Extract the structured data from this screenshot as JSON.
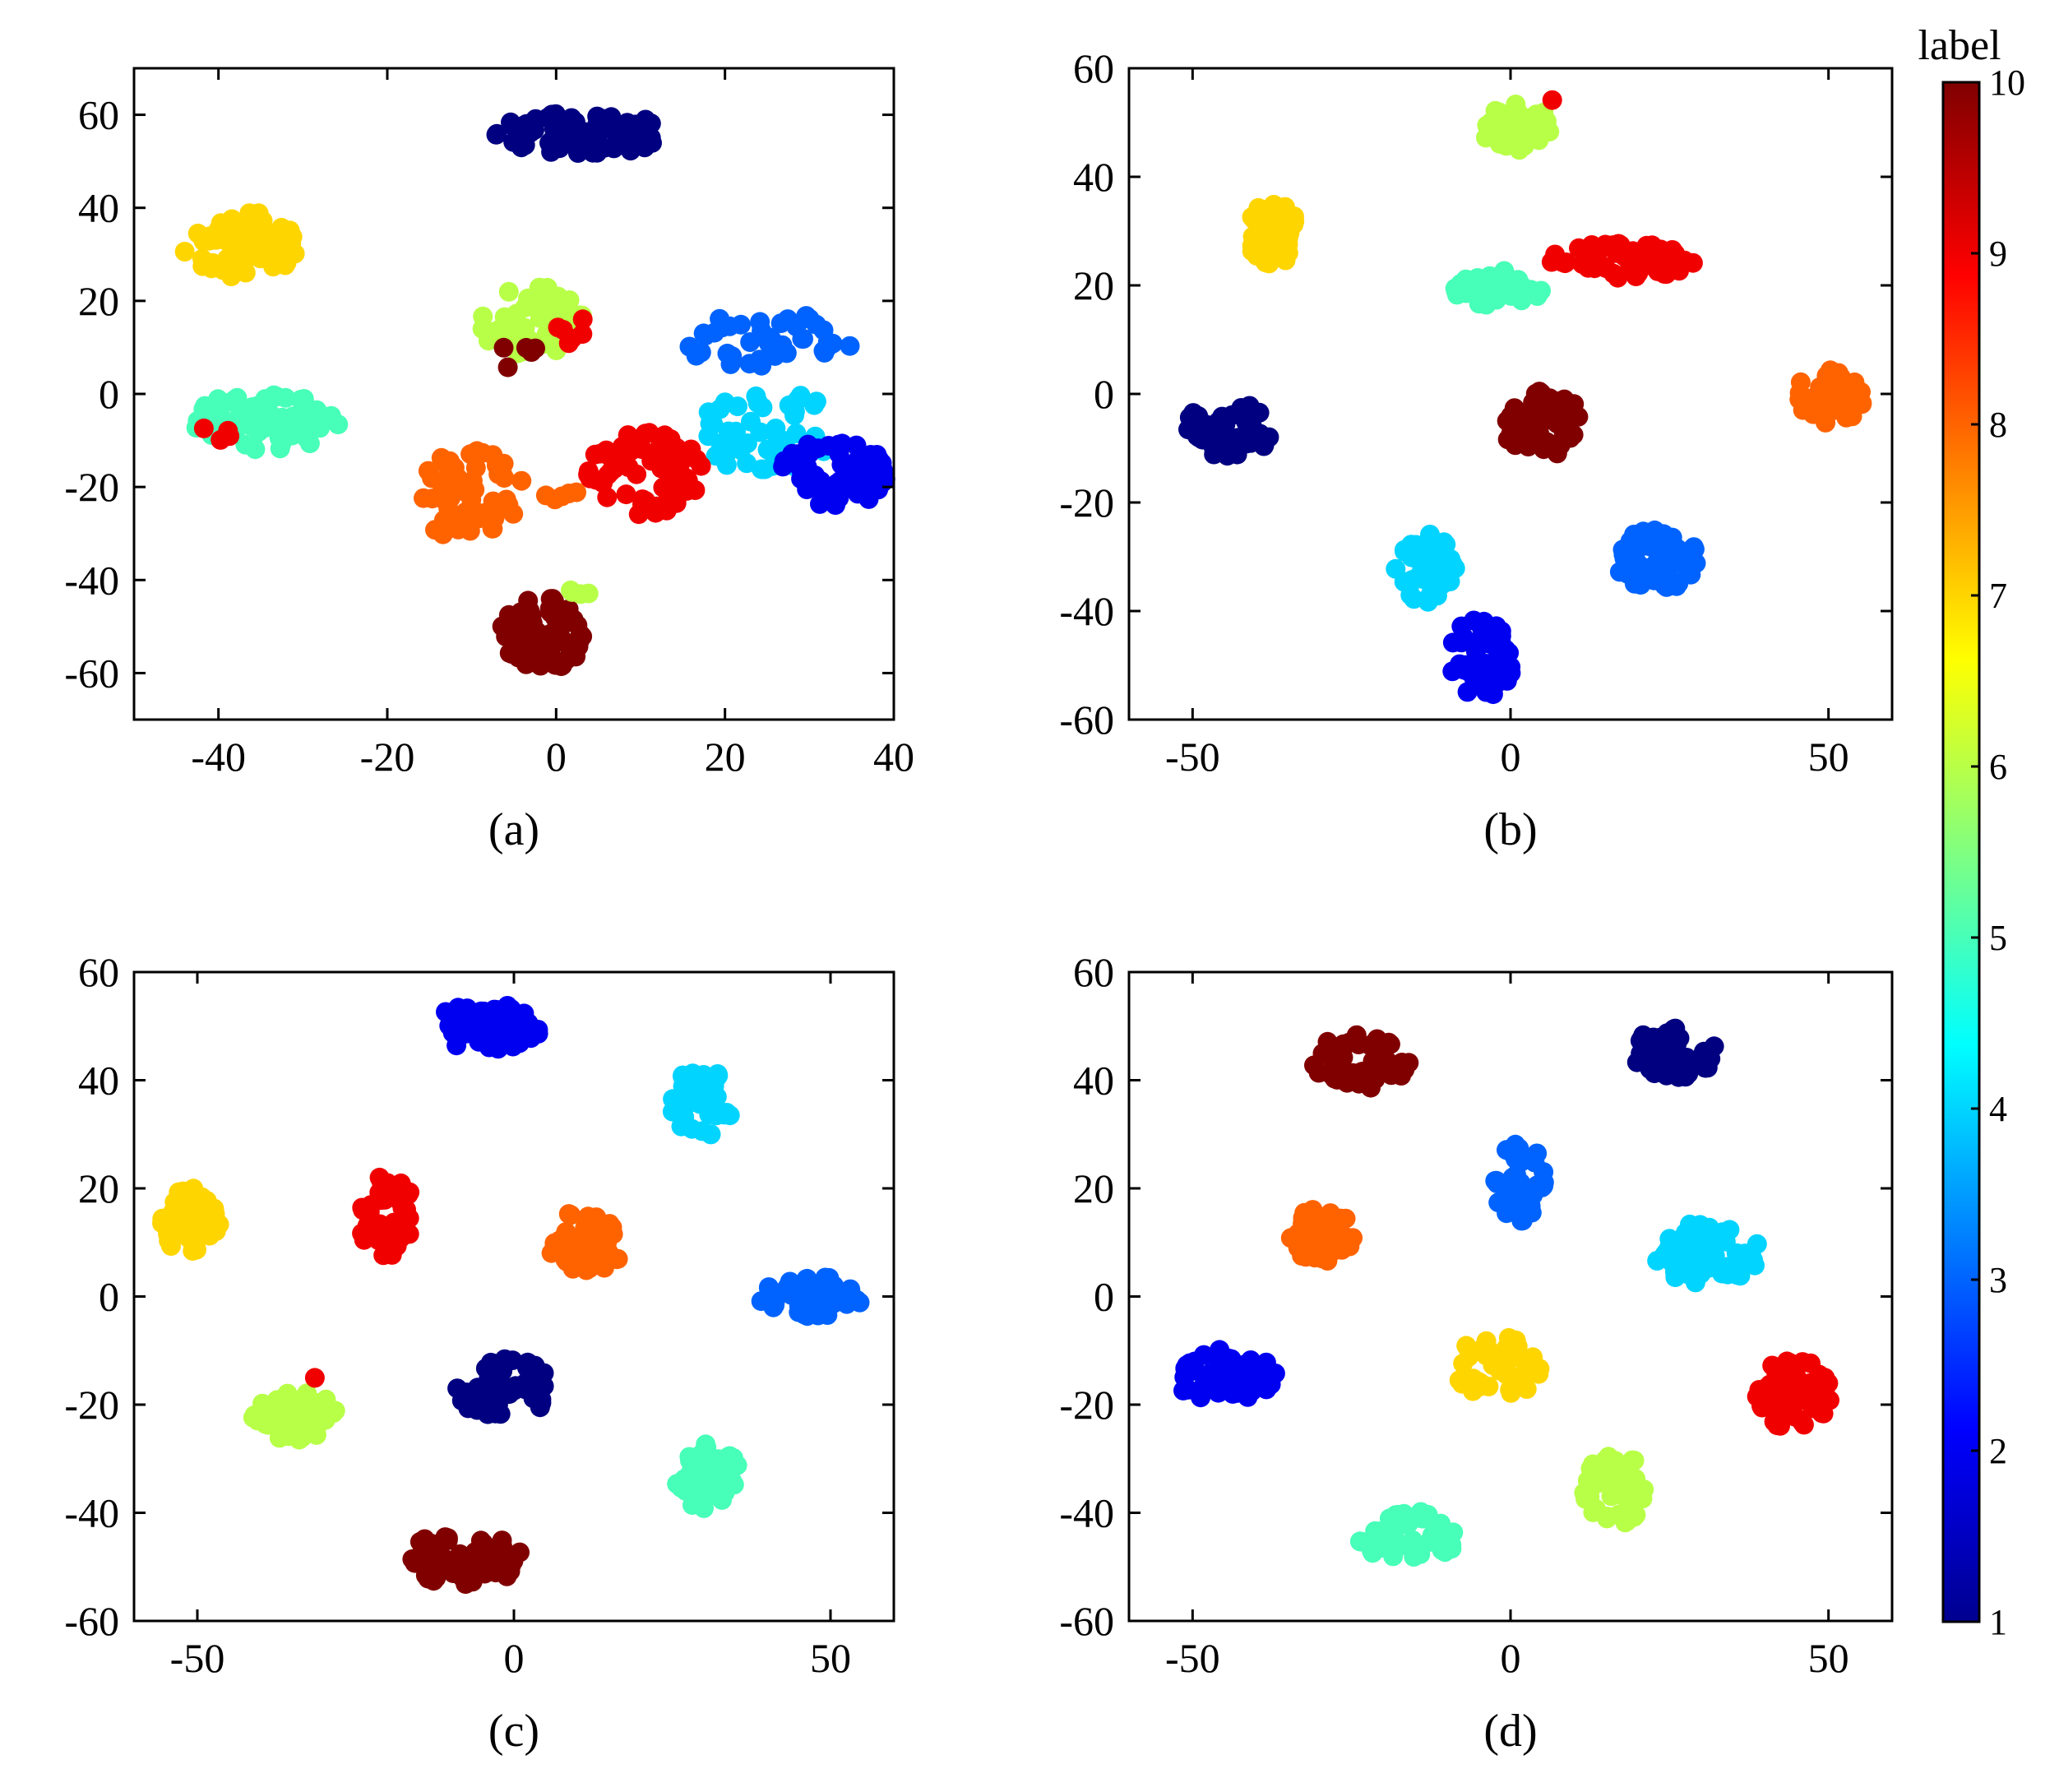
{
  "chart_data": [
    {
      "type": "scatter",
      "caption": "(a)",
      "xlim": [
        -50,
        40
      ],
      "ylim": [
        -70,
        70
      ],
      "xticks": [
        -40,
        -20,
        0,
        20,
        40
      ],
      "yticks": [
        -60,
        -40,
        -20,
        0,
        20,
        40,
        60
      ],
      "clusters": [
        {
          "label": 1,
          "x": [
            -8,
            14
          ],
          "y": [
            51,
            61
          ],
          "n": 70
        },
        {
          "label": 7,
          "x": [
            -45,
            -30
          ],
          "y": [
            24,
            40
          ],
          "n": 70
        },
        {
          "label": 6,
          "x": [
            -10,
            4
          ],
          "y": [
            7,
            24
          ],
          "n": 55
        },
        {
          "label": 9,
          "x": [
            0,
            5
          ],
          "y": [
            10,
            18
          ],
          "n": 6
        },
        {
          "label": 10,
          "x": [
            -9,
            0
          ],
          "y": [
            5,
            11
          ],
          "n": 5
        },
        {
          "label": 5,
          "x": [
            -44,
            -25
          ],
          "y": [
            -13,
            1
          ],
          "n": 70
        },
        {
          "label": 9,
          "x": [
            -42,
            -37
          ],
          "y": [
            -11,
            -5
          ],
          "n": 4
        },
        {
          "label": 3,
          "x": [
            14,
            36
          ],
          "y": [
            5,
            18
          ],
          "n": 45
        },
        {
          "label": 4,
          "x": [
            16,
            34
          ],
          "y": [
            -18,
            2
          ],
          "n": 55
        },
        {
          "label": 2,
          "x": [
            26,
            40
          ],
          "y": [
            -25,
            -9
          ],
          "n": 55
        },
        {
          "label": 9,
          "x": [
            3,
            18
          ],
          "y": [
            -27,
            -7
          ],
          "n": 65
        },
        {
          "label": 8,
          "x": [
            -17,
            -4
          ],
          "y": [
            -33,
            -10
          ],
          "n": 60
        },
        {
          "label": 8,
          "x": [
            -5,
            4
          ],
          "y": [
            -23,
            -17
          ],
          "n": 6
        },
        {
          "label": 10,
          "x": [
            -7,
            4
          ],
          "y": [
            -60,
            -43
          ],
          "n": 60
        },
        {
          "label": 6,
          "x": [
            0,
            6
          ],
          "y": [
            -44,
            -40
          ],
          "n": 4
        }
      ]
    },
    {
      "type": "scatter",
      "caption": "(b)",
      "xlim": [
        -60,
        60
      ],
      "ylim": [
        -60,
        60
      ],
      "xticks": [
        -50,
        0,
        50
      ],
      "yticks": [
        -60,
        -40,
        -20,
        0,
        20,
        40,
        60
      ],
      "clusters": [
        {
          "label": 6,
          "x": [
            -5,
            7
          ],
          "y": [
            44,
            54
          ],
          "n": 45
        },
        {
          "label": 9,
          "x": [
            5,
            7
          ],
          "y": [
            53,
            55
          ],
          "n": 1
        },
        {
          "label": 7,
          "x": [
            -42,
            -33
          ],
          "y": [
            23,
            36
          ],
          "n": 50
        },
        {
          "label": 5,
          "x": [
            -10,
            6
          ],
          "y": [
            16,
            23
          ],
          "n": 55
        },
        {
          "label": 9,
          "x": [
            5,
            30
          ],
          "y": [
            21,
            28
          ],
          "n": 55
        },
        {
          "label": 8,
          "x": [
            44,
            56
          ],
          "y": [
            -6,
            5
          ],
          "n": 55
        },
        {
          "label": 1,
          "x": [
            -52,
            -36
          ],
          "y": [
            -12,
            -1
          ],
          "n": 55
        },
        {
          "label": 10,
          "x": [
            -2,
            12
          ],
          "y": [
            -12,
            1
          ],
          "n": 55
        },
        {
          "label": 4,
          "x": [
            -19,
            -8
          ],
          "y": [
            -39,
            -25
          ],
          "n": 50
        },
        {
          "label": 2,
          "x": [
            -10,
            1
          ],
          "y": [
            -57,
            -40
          ],
          "n": 50
        },
        {
          "label": 3,
          "x": [
            16,
            30
          ],
          "y": [
            -37,
            -24
          ],
          "n": 55
        }
      ]
    },
    {
      "type": "scatter",
      "caption": "(c)",
      "xlim": [
        -60,
        60
      ],
      "ylim": [
        -60,
        60
      ],
      "xticks": [
        -50,
        0,
        50
      ],
      "yticks": [
        -60,
        -40,
        -20,
        0,
        20,
        40,
        60
      ],
      "clusters": [
        {
          "label": 2,
          "x": [
            -13,
            5
          ],
          "y": [
            45,
            55
          ],
          "n": 55
        },
        {
          "label": 4,
          "x": [
            24,
            35
          ],
          "y": [
            29,
            43
          ],
          "n": 50
        },
        {
          "label": 7,
          "x": [
            -56,
            -46
          ],
          "y": [
            7,
            21
          ],
          "n": 50
        },
        {
          "label": 9,
          "x": [
            -25,
            -15
          ],
          "y": [
            6,
            23
          ],
          "n": 50
        },
        {
          "label": 8,
          "x": [
            5,
            18
          ],
          "y": [
            3,
            17
          ],
          "n": 50
        },
        {
          "label": 3,
          "x": [
            38,
            56
          ],
          "y": [
            -4,
            4
          ],
          "n": 55
        },
        {
          "label": 6,
          "x": [
            -42,
            -27
          ],
          "y": [
            -27,
            -17
          ],
          "n": 55
        },
        {
          "label": 9,
          "x": [
            -32,
            -30
          ],
          "y": [
            -16,
            -14
          ],
          "n": 1
        },
        {
          "label": 1,
          "x": [
            -10,
            7
          ],
          "y": [
            -23,
            -11
          ],
          "n": 50
        },
        {
          "label": 5,
          "x": [
            25,
            36
          ],
          "y": [
            -40,
            -26
          ],
          "n": 50
        },
        {
          "label": 10,
          "x": [
            -18,
            2
          ],
          "y": [
            -54,
            -43
          ],
          "n": 55
        }
      ]
    },
    {
      "type": "scatter",
      "caption": "(d)",
      "xlim": [
        -60,
        60
      ],
      "ylim": [
        -60,
        60
      ],
      "xticks": [
        -50,
        0,
        50
      ],
      "yticks": [
        -60,
        -40,
        -20,
        0,
        20,
        40,
        60
      ],
      "clusters": [
        {
          "label": 10,
          "x": [
            -32,
            -15
          ],
          "y": [
            38,
            49
          ],
          "n": 55
        },
        {
          "label": 1,
          "x": [
            18,
            33
          ],
          "y": [
            40,
            50
          ],
          "n": 50
        },
        {
          "label": 3,
          "x": [
            -3,
            6
          ],
          "y": [
            13,
            29
          ],
          "n": 50
        },
        {
          "label": 8,
          "x": [
            -36,
            -24
          ],
          "y": [
            6,
            17
          ],
          "n": 50
        },
        {
          "label": 4,
          "x": [
            21,
            40
          ],
          "y": [
            2,
            14
          ],
          "n": 55
        },
        {
          "label": 7,
          "x": [
            -10,
            6
          ],
          "y": [
            -19,
            -7
          ],
          "n": 50
        },
        {
          "label": 2,
          "x": [
            -54,
            -36
          ],
          "y": [
            -20,
            -9
          ],
          "n": 55
        },
        {
          "label": 9,
          "x": [
            38,
            51
          ],
          "y": [
            -25,
            -11
          ],
          "n": 50
        },
        {
          "label": 6,
          "x": [
            11,
            22
          ],
          "y": [
            -43,
            -28
          ],
          "n": 50
        },
        {
          "label": 5,
          "x": [
            -25,
            -8
          ],
          "y": [
            -51,
            -39
          ],
          "n": 55
        }
      ]
    }
  ],
  "colorbar": {
    "title": "label",
    "range": [
      1,
      10
    ],
    "ticks": [
      1,
      2,
      3,
      4,
      5,
      6,
      7,
      8,
      9,
      10
    ],
    "colormap": "jet",
    "stops": [
      "#00008f",
      "#0000ff",
      "#0080ff",
      "#00ffff",
      "#80ff80",
      "#ffff00",
      "#ff8000",
      "#ff0000",
      "#800000"
    ]
  }
}
